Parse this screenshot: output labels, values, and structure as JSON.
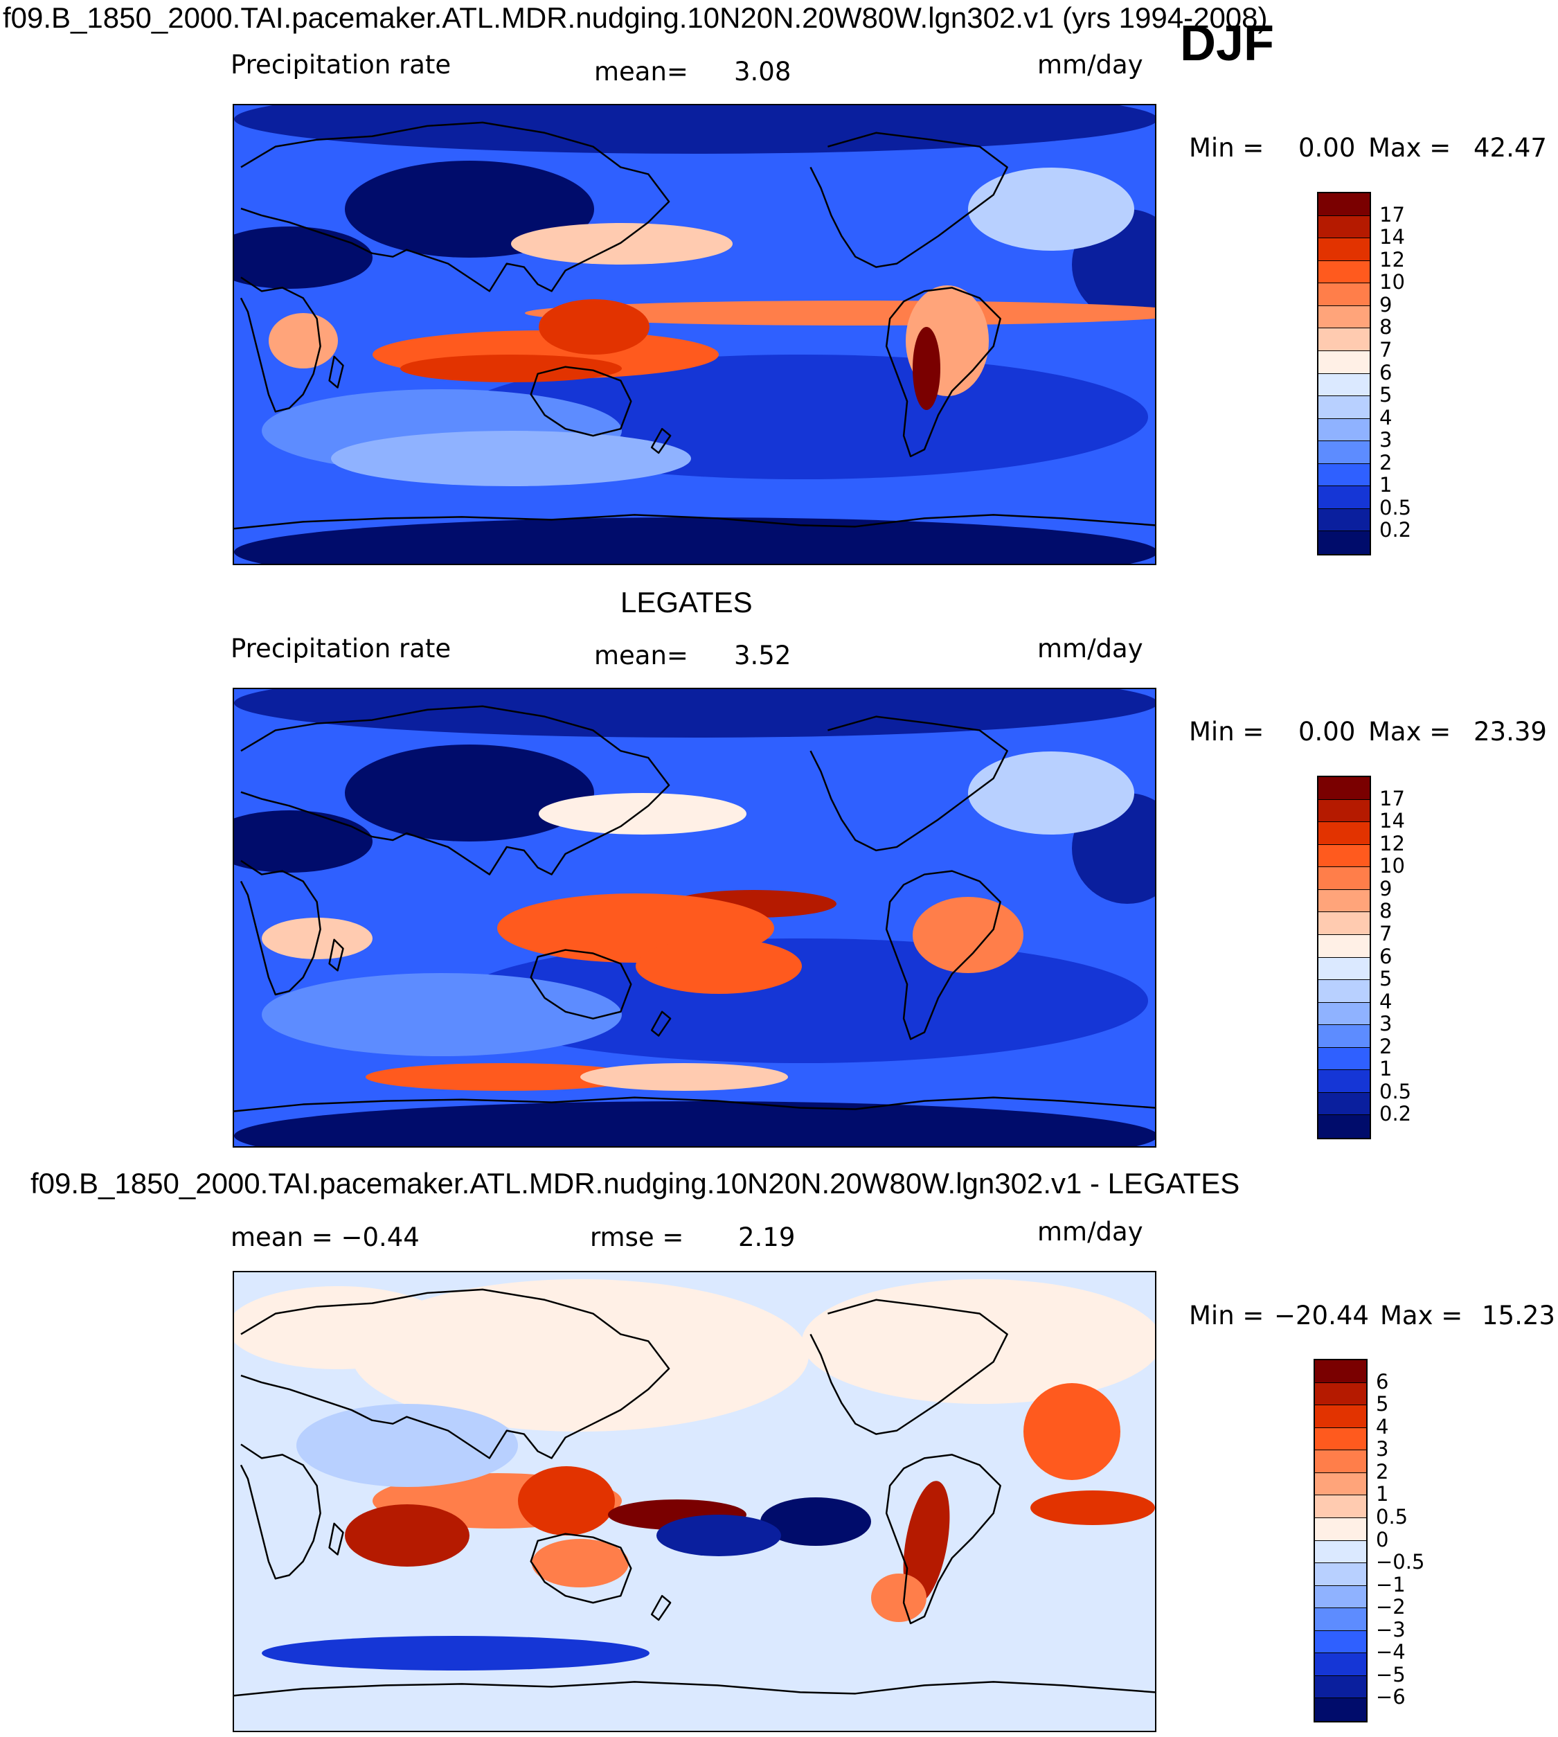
{
  "header": {
    "run_title": "f09.B_1850_2000.TAI.pacemaker.ATL.MDR.nudging.10N20N.20W80W.lgn302.v1 (yrs 1994-2008)",
    "season": "DJF"
  },
  "panels": [
    {
      "id": "model",
      "title": "",
      "left_label": "Precipitation rate",
      "mid_label": "mean=",
      "mid_value": "3.08",
      "units": "mm/day",
      "min_label": "Min =",
      "min_value": "0.00",
      "max_label": "Max =",
      "max_value": "42.47",
      "legend_levels": [
        "17",
        "14",
        "12",
        "10",
        "9",
        "8",
        "7",
        "6",
        "5",
        "4",
        "3",
        "2",
        "1",
        "0.5",
        "0.2"
      ],
      "legend_colors": [
        "#7a0000",
        "#b51a00",
        "#e23300",
        "#ff5a1e",
        "#ff7e4a",
        "#ffa47a",
        "#ffcbb0",
        "#fff0e6",
        "#dbe9ff",
        "#b8d0ff",
        "#8fb2ff",
        "#5d8cff",
        "#2f60ff",
        "#1536d6",
        "#0a1f9e",
        "#000c6b"
      ]
    },
    {
      "id": "obs",
      "title": "LEGATES",
      "left_label": "Precipitation rate",
      "mid_label": "mean=",
      "mid_value": "3.52",
      "units": "mm/day",
      "min_label": "Min =",
      "min_value": "0.00",
      "max_label": "Max =",
      "max_value": "23.39",
      "legend_levels": [
        "17",
        "14",
        "12",
        "10",
        "9",
        "8",
        "7",
        "6",
        "5",
        "4",
        "3",
        "2",
        "1",
        "0.5",
        "0.2"
      ],
      "legend_colors": [
        "#7a0000",
        "#b51a00",
        "#e23300",
        "#ff5a1e",
        "#ff7e4a",
        "#ffa47a",
        "#ffcbb0",
        "#fff0e6",
        "#dbe9ff",
        "#b8d0ff",
        "#8fb2ff",
        "#5d8cff",
        "#2f60ff",
        "#1536d6",
        "#0a1f9e",
        "#000c6b"
      ]
    },
    {
      "id": "diff",
      "title": "f09.B_1850_2000.TAI.pacemaker.ATL.MDR.nudging.10N20N.20W80W.lgn302.v1 - LEGATES",
      "left_label": "mean = −0.44",
      "mid_label": "rmse =",
      "mid_value": "2.19",
      "units": "mm/day",
      "min_label": "Min =",
      "min_value": "−20.44",
      "max_label": "Max =",
      "max_value": "15.23",
      "legend_levels": [
        "6",
        "5",
        "4",
        "3",
        "2",
        "1",
        "0.5",
        "0",
        "−0.5",
        "−1",
        "−2",
        "−3",
        "−4",
        "−5",
        "−6"
      ],
      "legend_colors": [
        "#7a0000",
        "#b51a00",
        "#e23300",
        "#ff5a1e",
        "#ff7e4a",
        "#ffa47a",
        "#ffcbb0",
        "#fff0e6",
        "#dbe9ff",
        "#b8d0ff",
        "#8fb2ff",
        "#5d8cff",
        "#2f60ff",
        "#1536d6",
        "#0a1f9e",
        "#000c6b"
      ]
    }
  ]
}
